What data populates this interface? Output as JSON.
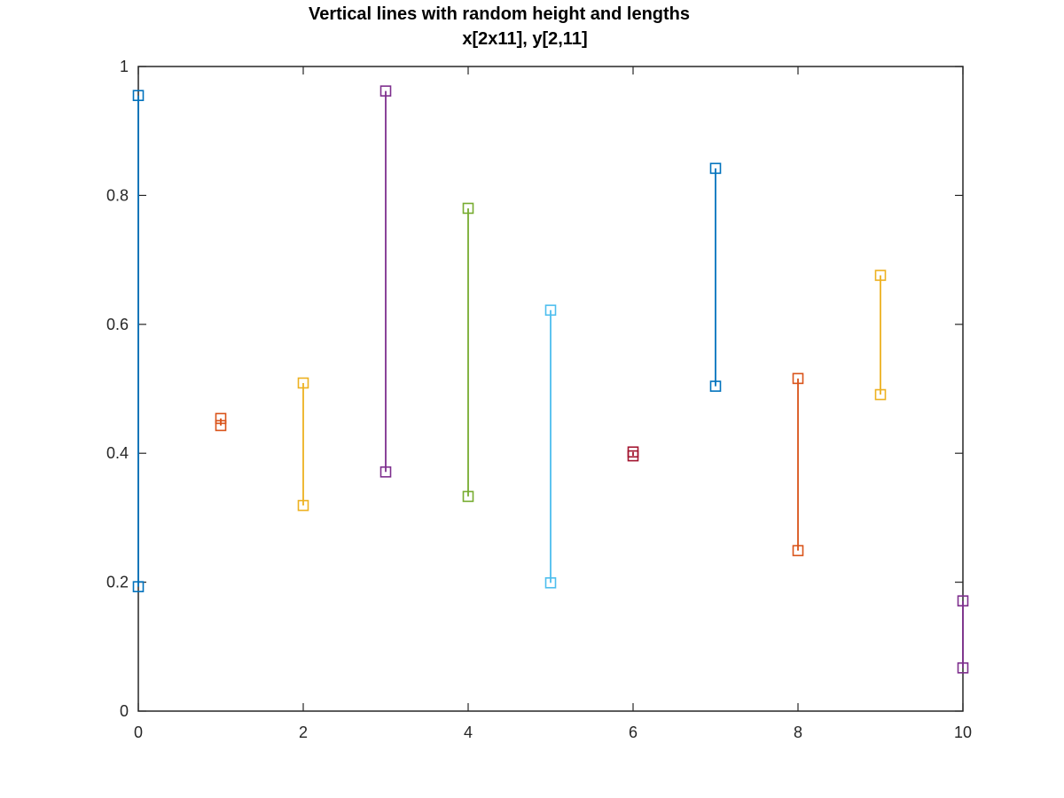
{
  "chart_data": {
    "type": "line",
    "title": "Vertical lines with random height and lengths",
    "subtitle": "x[2x11], y[2,11]",
    "xlabel": "",
    "ylabel": "",
    "xlim": [
      0,
      10
    ],
    "ylim": [
      0,
      1
    ],
    "x_ticks": [
      "0",
      "2",
      "4",
      "6",
      "8",
      "10"
    ],
    "y_ticks": [
      "0",
      "0.2",
      "0.4",
      "0.6",
      "0.8",
      "1"
    ],
    "x_tick_values": [
      0,
      2,
      4,
      6,
      8,
      10
    ],
    "y_tick_values": [
      0,
      0.2,
      0.4,
      0.6,
      0.8,
      1
    ],
    "grid": false,
    "box": true,
    "marker": "square",
    "series": [
      {
        "x": [
          0,
          0
        ],
        "y": [
          0.955,
          0.193
        ],
        "color": "#0072BD"
      },
      {
        "x": [
          1,
          1
        ],
        "y": [
          0.454,
          0.443
        ],
        "color": "#D95319"
      },
      {
        "x": [
          2,
          2
        ],
        "y": [
          0.509,
          0.319
        ],
        "color": "#EDB120"
      },
      {
        "x": [
          3,
          3
        ],
        "y": [
          0.962,
          0.371
        ],
        "color": "#7E2F8E"
      },
      {
        "x": [
          4,
          4
        ],
        "y": [
          0.78,
          0.333
        ],
        "color": "#77AC30"
      },
      {
        "x": [
          5,
          5
        ],
        "y": [
          0.622,
          0.199
        ],
        "color": "#4DBEEE"
      },
      {
        "x": [
          6,
          6
        ],
        "y": [
          0.402,
          0.396
        ],
        "color": "#A2142F"
      },
      {
        "x": [
          7,
          7
        ],
        "y": [
          0.842,
          0.504
        ],
        "color": "#0072BD"
      },
      {
        "x": [
          8,
          8
        ],
        "y": [
          0.516,
          0.249
        ],
        "color": "#D95319"
      },
      {
        "x": [
          9,
          9
        ],
        "y": [
          0.676,
          0.491
        ],
        "color": "#EDB120"
      },
      {
        "x": [
          10,
          10
        ],
        "y": [
          0.171,
          0.067
        ],
        "color": "#7E2F8E"
      }
    ]
  }
}
